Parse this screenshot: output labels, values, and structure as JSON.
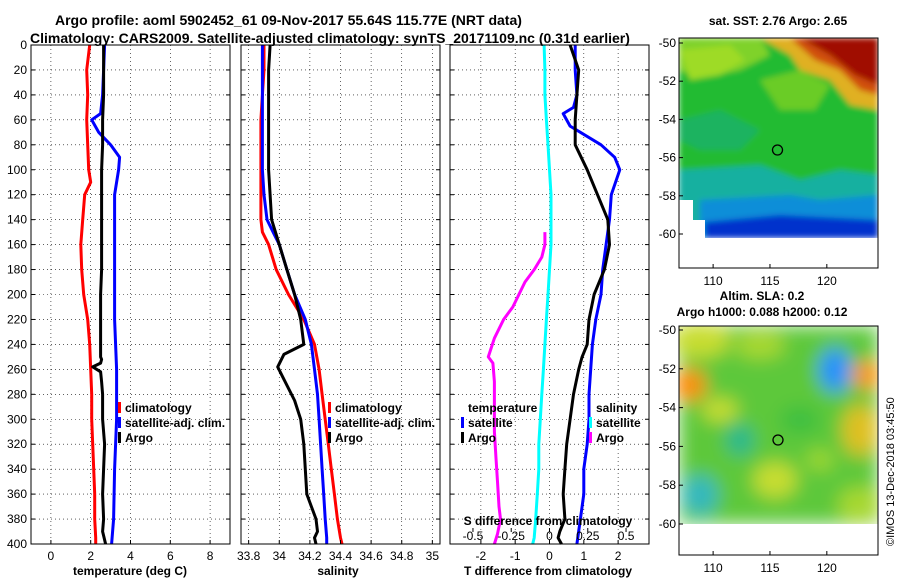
{
  "title_line1": "Argo profile: aoml 5902452_61 09-Nov-2017 55.64S 115.77E (NRT data)",
  "title_line2": "Climatology: CARS2009. Satellite-adjusted climatology: synTS_20171109.nc (0.31d earlier)",
  "credit": "©IMOS 13-Dec-2018 03:45:50",
  "colors": {
    "climatology": "#ff0000",
    "satellite_clim": "#0000ff",
    "argo": "#000000",
    "s_satellite": "#00ffff",
    "s_argo": "#ff00ff"
  },
  "chart_data": [
    {
      "name": "temperature",
      "type": "line",
      "xlabel": "temperature (deg C)",
      "ylabel": "",
      "xlim": [
        -1,
        9
      ],
      "ylim": [
        400,
        0
      ],
      "xticks": [
        0,
        2,
        4,
        6,
        8
      ],
      "xticklabels": [
        "0",
        "2",
        "4",
        "6",
        "8"
      ],
      "yticks": [
        0,
        20,
        40,
        60,
        80,
        100,
        120,
        140,
        160,
        180,
        200,
        220,
        240,
        260,
        280,
        300,
        320,
        340,
        360,
        380,
        400
      ],
      "yticklabels": [
        "0",
        "20",
        "40",
        "60",
        "80",
        "100",
        "120",
        "140",
        "160",
        "180",
        "200",
        "220",
        "240",
        "260",
        "280",
        "300",
        "320",
        "340",
        "360",
        "380",
        "400"
      ],
      "grid": true,
      "legend": {
        "position": "lower-right",
        "entries": [
          {
            "label": "climatology",
            "series": "climatology"
          },
          {
            "label": "satellite-adj. clim.",
            "series": "satellite_clim"
          },
          {
            "label": "Argo",
            "series": "argo"
          }
        ]
      },
      "series": [
        {
          "name": "climatology",
          "color": "#ff0000",
          "x": [
            1.95,
            1.8,
            1.85,
            1.8,
            1.85,
            1.9,
            2.0,
            1.7,
            1.6,
            1.5,
            1.55,
            1.65,
            1.85,
            1.95,
            2.0,
            2.05,
            2.05,
            2.1,
            2.15,
            2.2,
            2.2,
            2.25,
            2.25
          ],
          "y": [
            0,
            20,
            40,
            60,
            80,
            100,
            110,
            120,
            140,
            160,
            180,
            200,
            220,
            240,
            260,
            280,
            300,
            320,
            340,
            360,
            380,
            395,
            400
          ]
        },
        {
          "name": "satellite_clim",
          "color": "#0000ff",
          "x": [
            2.7,
            2.65,
            2.6,
            2.5,
            2.05,
            2.4,
            3.0,
            3.45,
            3.4,
            3.2,
            3.2,
            3.2,
            3.2,
            3.2,
            3.2,
            3.25,
            3.3,
            3.3,
            3.3,
            3.25,
            3.2,
            3.15,
            3.05
          ],
          "y": [
            0,
            20,
            40,
            55,
            60,
            70,
            80,
            90,
            100,
            120,
            140,
            160,
            180,
            200,
            220,
            240,
            260,
            280,
            300,
            320,
            340,
            380,
            400
          ]
        },
        {
          "name": "argo",
          "color": "#000000",
          "x": [
            2.65,
            2.65,
            2.65,
            2.6,
            2.6,
            2.55,
            2.55,
            2.55,
            2.55,
            2.55,
            2.5,
            2.5,
            2.5,
            2.5,
            2.55,
            2.5,
            2.1,
            2.5,
            2.55,
            2.6,
            2.6,
            2.7,
            2.65,
            2.6,
            2.65,
            2.6,
            2.75
          ],
          "y": [
            0,
            20,
            40,
            60,
            80,
            100,
            120,
            140,
            160,
            180,
            200,
            220,
            240,
            250,
            252,
            255,
            258,
            262,
            270,
            280,
            300,
            320,
            340,
            360,
            380,
            390,
            400
          ]
        }
      ]
    },
    {
      "name": "salinity",
      "type": "line",
      "xlabel": "salinity",
      "ylabel": "",
      "xlim": [
        33.75,
        35.05
      ],
      "ylim": [
        400,
        0
      ],
      "xticks": [
        33.8,
        34,
        34.2,
        34.4,
        34.6,
        34.8,
        35
      ],
      "xticklabels": [
        "33.8",
        "34",
        "34.2",
        "34.4",
        "34.6",
        "34.8",
        "35"
      ],
      "grid": true,
      "legend": {
        "position": "lower-right",
        "entries": [
          {
            "label": "climatology",
            "series": "climatology"
          },
          {
            "label": "satellite-adj. clim.",
            "series": "satellite_clim"
          },
          {
            "label": "Argo",
            "series": "argo"
          }
        ]
      },
      "series": [
        {
          "name": "climatology",
          "color": "#ff0000",
          "x": [
            33.9,
            33.9,
            33.89,
            33.88,
            33.88,
            33.88,
            33.88,
            33.88,
            33.89,
            33.93,
            33.98,
            34.06,
            34.16,
            34.23,
            34.26,
            34.28,
            34.3,
            34.32,
            34.34,
            34.36,
            34.38,
            34.4,
            34.41
          ],
          "y": [
            0,
            20,
            40,
            60,
            80,
            100,
            120,
            140,
            150,
            160,
            180,
            200,
            220,
            240,
            260,
            280,
            300,
            320,
            340,
            360,
            380,
            395,
            400
          ]
        },
        {
          "name": "satellite_clim",
          "color": "#0000ff",
          "x": [
            33.89,
            33.89,
            33.89,
            33.89,
            33.89,
            33.89,
            33.9,
            33.92,
            33.96,
            34.0,
            34.05,
            34.1,
            34.17,
            34.21,
            34.23,
            34.25,
            34.26,
            34.27,
            34.28,
            34.29,
            34.3,
            34.31,
            34.31
          ],
          "y": [
            0,
            20,
            40,
            60,
            80,
            100,
            120,
            140,
            150,
            160,
            180,
            200,
            220,
            240,
            260,
            280,
            300,
            320,
            340,
            360,
            380,
            395,
            400
          ]
        },
        {
          "name": "argo",
          "color": "#000000",
          "x": [
            33.94,
            33.93,
            33.93,
            33.93,
            33.93,
            33.93,
            33.94,
            33.95,
            34.0,
            34.05,
            34.1,
            34.14,
            34.16,
            34.03,
            33.99,
            34.03,
            34.1,
            34.14,
            34.16,
            34.17,
            34.18,
            34.21,
            34.24,
            34.25,
            34.23,
            34.24
          ],
          "y": [
            0,
            20,
            40,
            60,
            80,
            100,
            120,
            140,
            160,
            180,
            200,
            220,
            240,
            248,
            258,
            268,
            285,
            300,
            320,
            340,
            360,
            370,
            380,
            390,
            395,
            400
          ]
        }
      ]
    },
    {
      "name": "difference",
      "type": "line",
      "xlabel": "T difference from climatology",
      "xlabel_top": "S difference from climatology",
      "ylabel": "",
      "xlim": [
        -2.9,
        2.9
      ],
      "ylim": [
        400,
        0
      ],
      "xticks": [
        -2,
        -1,
        0,
        1,
        2
      ],
      "xticklabels": [
        "-2",
        "-1",
        "0",
        "1",
        "2"
      ],
      "s_ticks": [
        -0.5,
        -0.25,
        0,
        0.25,
        0.5
      ],
      "s_ticklabels": [
        "-0.5",
        "-0.25",
        "0",
        "0.25",
        "0.5"
      ],
      "grid": true,
      "legend": {
        "position": "lower",
        "temperature_title": "temperature",
        "salinity_title": "salinity",
        "entries": [
          {
            "label": "satellite",
            "series": "t_satellite",
            "group": "temperature"
          },
          {
            "label": "Argo",
            "series": "t_argo",
            "group": "temperature"
          },
          {
            "label": "satellite",
            "series": "s_satellite",
            "group": "salinity"
          },
          {
            "label": "Argo",
            "series": "s_argo",
            "group": "salinity"
          }
        ]
      },
      "series": [
        {
          "name": "t_satellite",
          "color": "#0000ff",
          "x": [
            0.75,
            0.75,
            0.8,
            0.7,
            0.4,
            0.6,
            1.5,
            1.9,
            2.05,
            1.8,
            1.75,
            1.65,
            1.55,
            1.5,
            1.35,
            1.25,
            1.2,
            1.15,
            1.15,
            1.1,
            1.0,
            1.0,
            0.9,
            0.8
          ],
          "y": [
            0,
            20,
            40,
            50,
            55,
            65,
            80,
            90,
            100,
            120,
            140,
            160,
            180,
            200,
            220,
            240,
            260,
            280,
            300,
            320,
            340,
            360,
            380,
            400
          ]
        },
        {
          "name": "t_argo",
          "color": "#000000",
          "x": [
            0.6,
            0.85,
            0.8,
            0.75,
            0.75,
            1.1,
            1.4,
            1.7,
            1.75,
            1.6,
            1.3,
            1.15,
            1.1,
            0.95,
            0.85,
            0.7,
            0.6,
            0.5,
            0.45,
            0.4,
            0.45,
            0.3,
            0.25,
            0.35
          ],
          "y": [
            0,
            20,
            40,
            60,
            80,
            100,
            120,
            140,
            160,
            180,
            200,
            220,
            240,
            250,
            260,
            280,
            300,
            320,
            340,
            360,
            380,
            390,
            395,
            400
          ]
        },
        {
          "name": "s_satellite",
          "color": "#00ffff",
          "x": [
            -0.035,
            -0.03,
            -0.03,
            -0.02,
            -0.01,
            0.0,
            0.01,
            0.01,
            0.01,
            0.0,
            -0.01,
            -0.02,
            -0.03,
            -0.04,
            -0.05,
            -0.06,
            -0.07,
            -0.07,
            -0.08,
            -0.09,
            -0.1,
            -0.11
          ],
          "y": [
            0,
            20,
            40,
            60,
            80,
            100,
            120,
            140,
            160,
            180,
            200,
            220,
            240,
            260,
            280,
            300,
            320,
            340,
            360,
            380,
            395,
            400
          ]
        },
        {
          "name": "s_argo",
          "color": "#ff00ff",
          "x": [
            -0.03,
            -0.03,
            -0.05,
            -0.1,
            -0.16,
            -0.2,
            -0.24,
            -0.3,
            -0.36,
            -0.4,
            -0.37,
            -0.36,
            -0.36,
            -0.36,
            -0.35,
            -0.34,
            -0.33,
            -0.32,
            -0.34,
            -0.36
          ],
          "y": [
            150,
            160,
            170,
            180,
            190,
            200,
            210,
            220,
            235,
            250,
            255,
            270,
            290,
            310,
            330,
            350,
            370,
            380,
            392,
            400
          ]
        }
      ]
    },
    {
      "name": "sst_map",
      "type": "heatmap",
      "title": "sat. SST: 2.76 Argo: 2.65",
      "xlim": [
        107,
        124.5
      ],
      "ylim": [
        -61.5,
        -49.5
      ],
      "xticks": [
        110,
        115,
        120
      ],
      "xticklabels": [
        "110",
        "115",
        "120"
      ],
      "yticks": [
        -50,
        -52,
        -54,
        -56,
        -58,
        -60
      ],
      "yticklabels": [
        "-50",
        "-52",
        "-54",
        "-56",
        "-58",
        "-60"
      ],
      "float_position": {
        "lon": 115.77,
        "lat": -55.64
      }
    },
    {
      "name": "sla_map",
      "type": "heatmap",
      "title_line1": "Altim. SLA: 0.2",
      "title_line2": "Argo h1000: 0.088 h2000: 0.12",
      "xlim": [
        107,
        124.5
      ],
      "ylim": [
        -61.5,
        -49.5
      ],
      "xticks": [
        110,
        115,
        120
      ],
      "xticklabels": [
        "110",
        "115",
        "120"
      ],
      "yticks": [
        -50,
        -52,
        -54,
        -56,
        -58,
        -60
      ],
      "yticklabels": [
        "-50",
        "-52",
        "-54",
        "-56",
        "-58",
        "-60"
      ],
      "float_position": {
        "lon": 115.77,
        "lat": -55.64
      }
    }
  ]
}
